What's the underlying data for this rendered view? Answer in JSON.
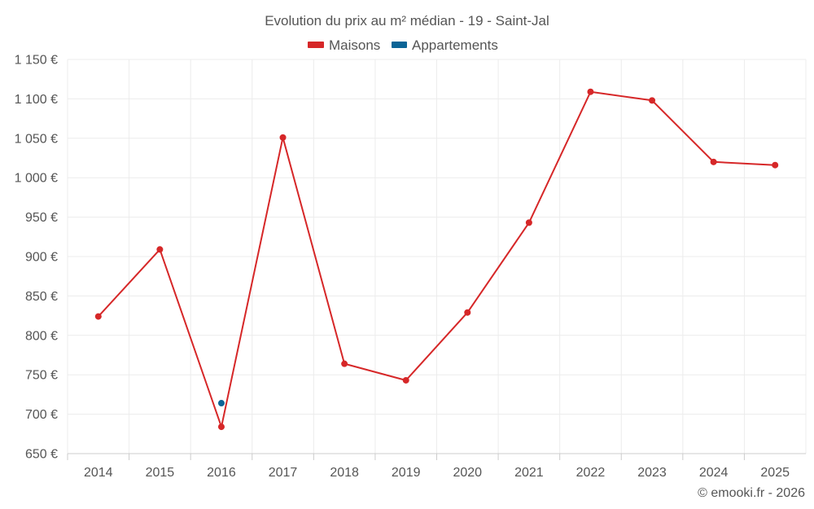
{
  "chart_data": {
    "type": "line",
    "title": "Evolution du prix au m² médian - 19 - Saint-Jal",
    "categories": [
      "2014",
      "2015",
      "2016",
      "2017",
      "2018",
      "2019",
      "2020",
      "2021",
      "2022",
      "2023",
      "2024",
      "2025"
    ],
    "series": [
      {
        "name": "Maisons",
        "color": "#d62728",
        "values": [
          824,
          909,
          684,
          1051,
          764,
          743,
          829,
          943,
          1109,
          1098,
          1020,
          1016
        ]
      },
      {
        "name": "Appartements",
        "color": "#0b6496",
        "values": [
          null,
          null,
          714,
          null,
          null,
          null,
          null,
          null,
          null,
          null,
          null,
          null
        ]
      }
    ],
    "ylim": [
      650,
      1150
    ],
    "yticks": [
      650,
      700,
      750,
      800,
      850,
      900,
      950,
      1000,
      1050,
      1100,
      1150
    ],
    "ytick_labels": [
      "650 €",
      "700 €",
      "750 €",
      "800 €",
      "850 €",
      "900 €",
      "950 €",
      "1 000 €",
      "1 050 €",
      "1 100 €",
      "1 150 €"
    ],
    "grid": true,
    "legend_position": "top-center"
  },
  "credit": "© emooki.fr - 2026"
}
